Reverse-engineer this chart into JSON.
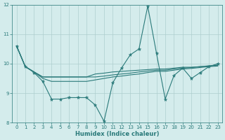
{
  "xlabel": "Humidex (Indice chaleur)",
  "bg_color": "#d4ecec",
  "grid_color": "#aecece",
  "line_color": "#2a7a7a",
  "xlim": [
    -0.5,
    23.5
  ],
  "ylim": [
    8,
    12
  ],
  "yticks": [
    8,
    9,
    10,
    11,
    12
  ],
  "xticks": [
    0,
    1,
    2,
    3,
    4,
    5,
    6,
    7,
    8,
    9,
    10,
    11,
    12,
    13,
    14,
    15,
    16,
    17,
    18,
    19,
    20,
    21,
    22,
    23
  ],
  "series1_x": [
    0,
    1,
    2,
    3,
    4,
    5,
    6,
    7,
    8,
    9,
    10,
    11,
    12,
    13,
    14,
    15,
    16,
    17,
    18,
    19,
    20,
    21,
    22,
    23
  ],
  "series1_y": [
    10.6,
    9.9,
    9.7,
    9.4,
    8.8,
    8.8,
    8.85,
    8.85,
    8.85,
    8.6,
    8.05,
    9.35,
    9.85,
    10.3,
    10.5,
    11.95,
    10.35,
    8.8,
    9.6,
    9.85,
    9.5,
    9.7,
    9.9,
    10.0
  ],
  "series2_x": [
    0,
    1,
    2,
    3,
    4,
    5,
    6,
    7,
    8,
    9,
    10,
    11,
    12,
    13,
    14,
    15,
    16,
    17,
    18,
    19,
    20,
    21,
    22,
    23
  ],
  "series2_y": [
    10.6,
    9.9,
    9.72,
    9.55,
    9.55,
    9.55,
    9.55,
    9.55,
    9.55,
    9.55,
    9.58,
    9.62,
    9.65,
    9.68,
    9.72,
    9.75,
    9.78,
    9.78,
    9.82,
    9.85,
    9.87,
    9.9,
    9.93,
    9.95
  ],
  "series3_x": [
    0,
    1,
    2,
    3,
    4,
    5,
    6,
    7,
    8,
    9,
    10,
    11,
    12,
    13,
    14,
    15,
    16,
    17,
    18,
    19,
    20,
    21,
    22,
    23
  ],
  "series3_y": [
    10.6,
    9.9,
    9.72,
    9.55,
    9.55,
    9.55,
    9.55,
    9.55,
    9.55,
    9.65,
    9.68,
    9.72,
    9.74,
    9.76,
    9.78,
    9.8,
    9.82,
    9.82,
    9.85,
    9.88,
    9.88,
    9.9,
    9.92,
    9.95
  ],
  "series4_x": [
    0,
    1,
    2,
    3,
    4,
    5,
    6,
    7,
    8,
    9,
    10,
    11,
    12,
    13,
    14,
    15,
    16,
    17,
    18,
    19,
    20,
    21,
    22,
    23
  ],
  "series4_y": [
    10.6,
    9.9,
    9.72,
    9.5,
    9.4,
    9.4,
    9.4,
    9.4,
    9.4,
    9.45,
    9.5,
    9.55,
    9.58,
    9.62,
    9.65,
    9.7,
    9.74,
    9.74,
    9.78,
    9.82,
    9.84,
    9.87,
    9.9,
    9.92
  ]
}
